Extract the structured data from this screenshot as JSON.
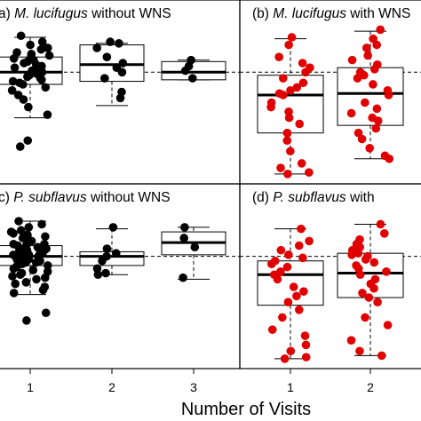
{
  "xlabel": "Number of Visits",
  "chart_data": [
    {
      "type": "box-strip",
      "panel": "a",
      "title_prefix": "a)",
      "title_species": "M. lucifugus",
      "title_rest": " without WNS",
      "color": "#000000",
      "reference_line": "dashed horizontal at median of pooled data",
      "groups": [
        {
          "visits": 1,
          "q1": 0.62,
          "median": 0.7,
          "q3": 0.8,
          "whisker_low": 0.4,
          "whisker_high": 0.93,
          "points": [
            0.94,
            0.9,
            0.88,
            0.86,
            0.85,
            0.83,
            0.82,
            0.81,
            0.8,
            0.79,
            0.78,
            0.77,
            0.76,
            0.75,
            0.74,
            0.73,
            0.72,
            0.71,
            0.7,
            0.7,
            0.69,
            0.68,
            0.67,
            0.66,
            0.65,
            0.64,
            0.63,
            0.62,
            0.6,
            0.58,
            0.55,
            0.52,
            0.47,
            0.42,
            0.25,
            0.21
          ]
        },
        {
          "visits": 2,
          "q1": 0.64,
          "median": 0.75,
          "q3": 0.88,
          "whisker_low": 0.48,
          "whisker_high": 0.89,
          "points": [
            0.9,
            0.89,
            0.86,
            0.8,
            0.76,
            0.73,
            0.7,
            0.66,
            0.57,
            0.53
          ]
        },
        {
          "visits": 3,
          "q1": 0.65,
          "median": 0.7,
          "q3": 0.77,
          "whisker_low": 0.65,
          "whisker_high": 0.78,
          "points": [
            0.78,
            0.74,
            0.71,
            0.66
          ]
        }
      ]
    },
    {
      "type": "box-strip",
      "panel": "b",
      "title_prefix": "(b)",
      "title_species": "M. lucifugus",
      "title_rest": " with WNS",
      "color": "#e00000",
      "reference_line": "dashed horizontal",
      "groups": [
        {
          "visits": 1,
          "q1": 0.3,
          "median": 0.55,
          "q3": 0.68,
          "whisker_low": 0.03,
          "whisker_high": 0.92,
          "points": [
            0.93,
            0.88,
            0.8,
            0.76,
            0.73,
            0.7,
            0.66,
            0.63,
            0.6,
            0.58,
            0.56,
            0.55,
            0.5,
            0.47,
            0.44,
            0.4,
            0.36,
            0.3,
            0.25,
            0.18,
            0.1,
            0.07,
            0.04,
            0.03
          ]
        },
        {
          "visits": 2,
          "q1": 0.35,
          "median": 0.56,
          "q3": 0.73,
          "whisker_low": 0.13,
          "whisker_high": 0.97,
          "points": [
            0.98,
            0.92,
            0.86,
            0.81,
            0.78,
            0.75,
            0.72,
            0.7,
            0.68,
            0.66,
            0.62,
            0.58,
            0.55,
            0.5,
            0.46,
            0.43,
            0.4,
            0.38,
            0.33,
            0.3,
            0.26,
            0.2,
            0.15,
            0.13,
            0.88
          ]
        }
      ]
    },
    {
      "type": "box-strip",
      "panel": "c",
      "title_prefix": "c)",
      "title_species": "P. subflavus",
      "title_rest": " without WNS",
      "color": "#000000",
      "reference_line": "dashed horizontal",
      "groups": [
        {
          "visits": 1,
          "q1": 0.64,
          "median": 0.7,
          "q3": 0.77,
          "whisker_low": 0.45,
          "whisker_high": 0.93,
          "points": [
            0.93,
            0.91,
            0.89,
            0.87,
            0.86,
            0.85,
            0.84,
            0.83,
            0.82,
            0.81,
            0.8,
            0.79,
            0.79,
            0.78,
            0.78,
            0.77,
            0.77,
            0.76,
            0.76,
            0.75,
            0.75,
            0.74,
            0.74,
            0.73,
            0.73,
            0.72,
            0.72,
            0.71,
            0.71,
            0.7,
            0.7,
            0.7,
            0.69,
            0.69,
            0.68,
            0.68,
            0.67,
            0.67,
            0.66,
            0.66,
            0.65,
            0.65,
            0.64,
            0.64,
            0.63,
            0.62,
            0.61,
            0.6,
            0.59,
            0.58,
            0.57,
            0.56,
            0.55,
            0.53,
            0.52,
            0.5,
            0.48,
            0.46,
            0.33,
            0.28
          ]
        },
        {
          "visits": 2,
          "q1": 0.64,
          "median": 0.7,
          "q3": 0.73,
          "whisker_low": 0.58,
          "whisker_high": 0.88,
          "points": [
            0.89,
            0.75,
            0.72,
            0.7,
            0.67,
            0.62,
            0.59,
            0.58
          ]
        },
        {
          "visits": 3,
          "q1": 0.71,
          "median": 0.79,
          "q3": 0.86,
          "whisker_low": 0.55,
          "whisker_high": 0.89,
          "points": [
            0.89,
            0.82,
            0.76,
            0.56
          ]
        }
      ]
    },
    {
      "type": "box-strip",
      "panel": "d",
      "title_prefix": "(d)",
      "title_species": "P. subflavus",
      "title_rest": " with",
      "color": "#e00000",
      "reference_line": "dashed horizontal",
      "groups": [
        {
          "visits": 1,
          "q1": 0.38,
          "median": 0.58,
          "q3": 0.67,
          "whisker_low": 0.03,
          "whisker_high": 0.88,
          "points": [
            0.88,
            0.8,
            0.77,
            0.74,
            0.71,
            0.69,
            0.67,
            0.65,
            0.63,
            0.6,
            0.58,
            0.55,
            0.5,
            0.47,
            0.44,
            0.4,
            0.35,
            0.3,
            0.22,
            0.18,
            0.12,
            0.08,
            0.04,
            0.03
          ]
        },
        {
          "visits": 2,
          "q1": 0.43,
          "median": 0.59,
          "q3": 0.72,
          "whisker_low": 0.05,
          "whisker_high": 0.91,
          "points": [
            0.91,
            0.85,
            0.81,
            0.78,
            0.76,
            0.74,
            0.72,
            0.71,
            0.7,
            0.68,
            0.66,
            0.64,
            0.62,
            0.6,
            0.58,
            0.55,
            0.52,
            0.49,
            0.46,
            0.43,
            0.4,
            0.3,
            0.25,
            0.15,
            0.08,
            0.05
          ]
        }
      ]
    }
  ],
  "x_ticks": [
    "1",
    "2",
    "3"
  ]
}
